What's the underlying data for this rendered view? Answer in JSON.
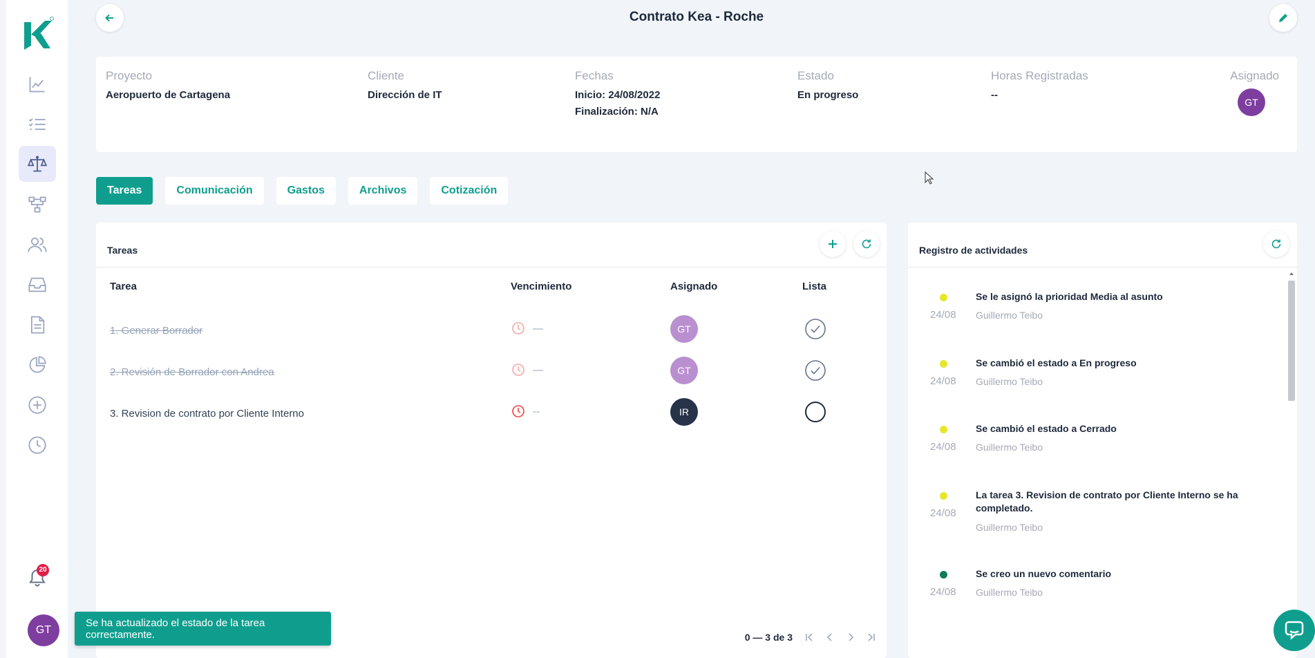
{
  "page": {
    "title": "Contrato Kea - Roche"
  },
  "sidebar": {
    "items": [
      {
        "icon": "chart-line-icon"
      },
      {
        "icon": "checklist-icon"
      },
      {
        "icon": "scale-icon",
        "active": true
      },
      {
        "icon": "hierarchy-icon"
      },
      {
        "icon": "users-icon"
      },
      {
        "icon": "inbox-icon"
      },
      {
        "icon": "document-icon"
      },
      {
        "icon": "pie-chart-icon"
      },
      {
        "icon": "plus-circle-icon"
      },
      {
        "icon": "clock-icon"
      }
    ],
    "notifications_count": "20",
    "user_initials": "GT"
  },
  "info": {
    "proyecto": {
      "label": "Proyecto",
      "value": "Aeropuerto de Cartagena"
    },
    "cliente": {
      "label": "Cliente",
      "value": "Dirección de IT"
    },
    "fechas": {
      "label": "Fechas",
      "inicio": "Inicio: 24/08/2022",
      "fin": "Finalización: N/A"
    },
    "estado": {
      "label": "Estado",
      "value": "En progreso"
    },
    "horas": {
      "label": "Horas Registradas",
      "value": "--"
    },
    "asignado": {
      "label": "Asignado",
      "initials": "GT"
    }
  },
  "tabs": [
    {
      "label": "Tareas",
      "active": true
    },
    {
      "label": "Comunicación"
    },
    {
      "label": "Gastos"
    },
    {
      "label": "Archivos"
    },
    {
      "label": "Cotización"
    }
  ],
  "tasks": {
    "title": "Tareas",
    "columns": {
      "tarea": "Tarea",
      "vencimiento": "Vencimiento",
      "asignado": "Asignado",
      "lista": "Lista"
    },
    "rows": [
      {
        "name": "1. Generar Borrador",
        "due": "—",
        "assignee": "GT",
        "assignee_color": "#b98fd0",
        "done": true
      },
      {
        "name": "2. Revisión de Borrador con Andrea",
        "due": "—",
        "assignee": "GT",
        "assignee_color": "#b98fd0",
        "done": true
      },
      {
        "name": "3. Revision de contrato por Cliente Interno",
        "due": "--",
        "assignee": "IR",
        "assignee_color": "#273348",
        "done": false
      }
    ],
    "pagination": "0 — 3 de 3"
  },
  "activity": {
    "title": "Registro de actividades",
    "items": [
      {
        "text": "Se le asignó la prioridad Media al asunto",
        "date": "24/08",
        "user": "Guillermo Teibo",
        "dot_color": "#e6e62a"
      },
      {
        "text": "Se cambió el estado a En progreso",
        "date": "24/08",
        "user": "Guillermo Teibo",
        "dot_color": "#e6e62a"
      },
      {
        "text": "Se cambió el estado a Cerrado",
        "date": "24/08",
        "user": "Guillermo Teibo",
        "dot_color": "#e6e62a"
      },
      {
        "text": "La tarea 3. Revision de contrato por Cliente Interno se ha completado.",
        "date": "24/08",
        "user": "Guillermo Teibo",
        "dot_color": "#e6e62a"
      },
      {
        "text": "Se creo un nuevo comentario",
        "date": "24/08",
        "user": "Guillermo Teibo",
        "dot_color": "#0f7a5c"
      }
    ]
  },
  "toast": {
    "message": "Se ha actualizado el estado de la tarea correctamente."
  },
  "colors": {
    "accent": "#0f9e8e",
    "sidebar_icon": "#98a4c0",
    "sidebar_active_bg": "#e8eafb"
  }
}
